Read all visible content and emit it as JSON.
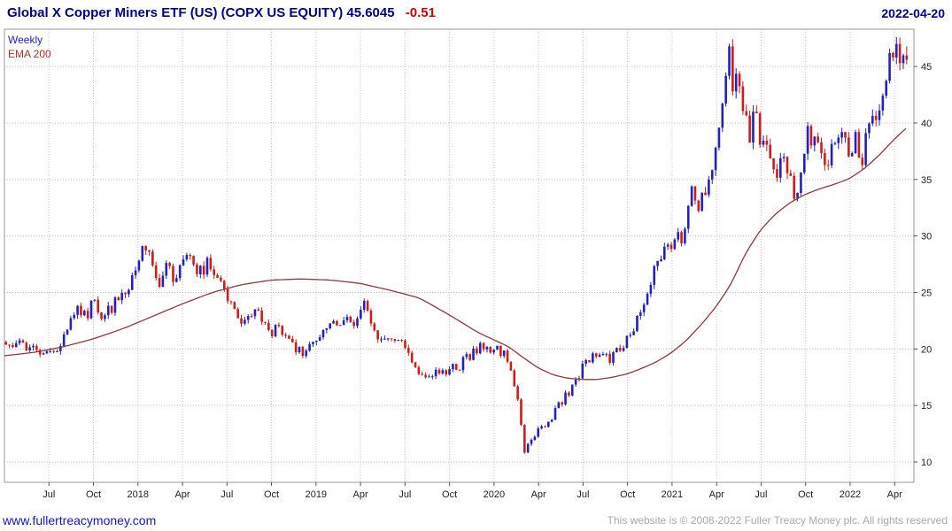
{
  "header": {
    "title": "Global X Copper Miners ETF (US) (COPX US EQUITY) 45.6045",
    "change": "-0.51",
    "date": "2022-04-20"
  },
  "legend": {
    "series1": "Weekly",
    "series2": "EMA 200"
  },
  "footer": {
    "link": "www.fullertreacymoney.com",
    "copyright": "This website is © 2008-2022 Fuller Treacy Money plc. All rights reserved"
  },
  "colors": {
    "title": "#00008b",
    "change": "#cc0000",
    "date": "#00008b",
    "up": "#2222bb",
    "down": "#cc1c1c",
    "ema": "#8b3a3a",
    "grid": "#c6c6c6",
    "axis": "#999999",
    "tick": "#555555",
    "tick_text": "#222222",
    "legend_weekly": "#2222bb",
    "legend_ema": "#b03030",
    "link": "#1515cc",
    "copyright": "#a9a9a9"
  },
  "chart_data": {
    "type": "candlestick",
    "instrument": "Global X Copper Miners ETF (US) (COPX US EQUITY)",
    "timeframe": "Weekly",
    "overlay": "EMA 200",
    "last_close": 45.6045,
    "change": -0.51,
    "date": "2022-04-20",
    "y_ticks": [
      10,
      15,
      20,
      25,
      30,
      35,
      40,
      45
    ],
    "y_range": [
      8.2,
      48.3
    ],
    "x_range_months": [
      -2,
      59.3
    ],
    "x_epoch": "months since 2017-06",
    "x_ticks": [
      {
        "m": 1,
        "label": "Jul"
      },
      {
        "m": 4,
        "label": "Oct"
      },
      {
        "m": 7,
        "label": "2018"
      },
      {
        "m": 10,
        "label": "Apr"
      },
      {
        "m": 13,
        "label": "Jul"
      },
      {
        "m": 16,
        "label": "Oct"
      },
      {
        "m": 19,
        "label": "2019"
      },
      {
        "m": 22,
        "label": "Apr"
      },
      {
        "m": 25,
        "label": "Jul"
      },
      {
        "m": 28,
        "label": "Oct"
      },
      {
        "m": 31,
        "label": "2020"
      },
      {
        "m": 34,
        "label": "Apr"
      },
      {
        "m": 37,
        "label": "Jul"
      },
      {
        "m": 40,
        "label": "Oct"
      },
      {
        "m": 43,
        "label": "2021"
      },
      {
        "m": 46,
        "label": "Apr"
      },
      {
        "m": 49,
        "label": "Jul"
      },
      {
        "m": 52,
        "label": "Oct"
      },
      {
        "m": 55,
        "label": "2022"
      },
      {
        "m": 58,
        "label": "Apr"
      }
    ],
    "close_anchors": [
      [
        -2.0,
        20.6
      ],
      [
        -1.5,
        19.8
      ],
      [
        -1.0,
        20.6
      ],
      [
        -0.5,
        19.9
      ],
      [
        0.0,
        20.4
      ],
      [
        0.5,
        19.6
      ],
      [
        1.0,
        20.2
      ],
      [
        1.5,
        19.7
      ],
      [
        2.0,
        21.6
      ],
      [
        2.5,
        22.4
      ],
      [
        3.0,
        23.4
      ],
      [
        3.5,
        22.8
      ],
      [
        4.0,
        24.4
      ],
      [
        4.5,
        23.2
      ],
      [
        5.0,
        23.4
      ],
      [
        5.5,
        24.2
      ],
      [
        6.0,
        25.2
      ],
      [
        6.5,
        26.0
      ],
      [
        7.0,
        27.8
      ],
      [
        7.6,
        29.4
      ],
      [
        8.0,
        27.0
      ],
      [
        8.4,
        25.8
      ],
      [
        9.0,
        27.2
      ],
      [
        9.5,
        26.2
      ],
      [
        10.0,
        27.6
      ],
      [
        10.5,
        28.3
      ],
      [
        11.0,
        26.8
      ],
      [
        11.5,
        27.3
      ],
      [
        12.0,
        27.6
      ],
      [
        12.5,
        26.0
      ],
      [
        13.0,
        24.2
      ],
      [
        13.5,
        23.2
      ],
      [
        14.0,
        22.3
      ],
      [
        14.5,
        22.8
      ],
      [
        15.0,
        23.2
      ],
      [
        15.5,
        22.0
      ],
      [
        16.0,
        21.4
      ],
      [
        16.5,
        21.8
      ],
      [
        17.0,
        20.8
      ],
      [
        17.5,
        20.2
      ],
      [
        18.0,
        19.6
      ],
      [
        18.5,
        20.2
      ],
      [
        19.0,
        20.9
      ],
      [
        19.5,
        21.6
      ],
      [
        20.0,
        22.4
      ],
      [
        20.5,
        22.1
      ],
      [
        21.0,
        22.7
      ],
      [
        21.5,
        22.3
      ],
      [
        22.0,
        23.4
      ],
      [
        22.3,
        23.9
      ],
      [
        22.7,
        22.6
      ],
      [
        23.0,
        21.4
      ],
      [
        23.5,
        20.8
      ],
      [
        24.0,
        20.9
      ],
      [
        24.5,
        21.3
      ],
      [
        25.0,
        20.2
      ],
      [
        25.5,
        18.8
      ],
      [
        26.0,
        17.7
      ],
      [
        26.5,
        17.3
      ],
      [
        27.0,
        18.2
      ],
      [
        27.5,
        17.8
      ],
      [
        28.0,
        18.5
      ],
      [
        28.5,
        18.3
      ],
      [
        29.0,
        19.0
      ],
      [
        29.5,
        19.4
      ],
      [
        30.0,
        20.4
      ],
      [
        30.5,
        20.1
      ],
      [
        31.0,
        19.7
      ],
      [
        31.5,
        19.9
      ],
      [
        32.0,
        18.8
      ],
      [
        32.5,
        16.5
      ],
      [
        32.8,
        13.8
      ],
      [
        33.1,
        10.6
      ],
      [
        33.4,
        11.9
      ],
      [
        33.7,
        12.4
      ],
      [
        34.0,
        13.1
      ],
      [
        34.5,
        13.0
      ],
      [
        35.0,
        14.3
      ],
      [
        35.5,
        15.2
      ],
      [
        36.0,
        16.1
      ],
      [
        36.5,
        17.2
      ],
      [
        37.0,
        18.5
      ],
      [
        37.5,
        19.3
      ],
      [
        38.0,
        19.8
      ],
      [
        38.5,
        19.1
      ],
      [
        39.0,
        19.3
      ],
      [
        39.5,
        20.0
      ],
      [
        40.0,
        20.7
      ],
      [
        40.5,
        22.2
      ],
      [
        41.0,
        24.1
      ],
      [
        41.5,
        25.6
      ],
      [
        42.0,
        27.5
      ],
      [
        42.5,
        28.4
      ],
      [
        43.0,
        28.7
      ],
      [
        43.3,
        30.4
      ],
      [
        43.7,
        29.2
      ],
      [
        44.0,
        33.0
      ],
      [
        44.4,
        34.2
      ],
      [
        44.8,
        32.4
      ],
      [
        45.0,
        33.0
      ],
      [
        45.5,
        35.6
      ],
      [
        46.0,
        38.4
      ],
      [
        46.4,
        41.0
      ],
      [
        46.8,
        46.6
      ],
      [
        47.1,
        42.8
      ],
      [
        47.4,
        44.6
      ],
      [
        47.8,
        41.0
      ],
      [
        48.2,
        39.0
      ],
      [
        48.6,
        40.6
      ],
      [
        49.0,
        37.6
      ],
      [
        49.4,
        38.9
      ],
      [
        49.8,
        36.4
      ],
      [
        50.2,
        35.6
      ],
      [
        50.6,
        37.2
      ],
      [
        51.0,
        34.6
      ],
      [
        51.4,
        33.4
      ],
      [
        51.8,
        36.6
      ],
      [
        52.2,
        39.4
      ],
      [
        52.6,
        38.2
      ],
      [
        53.0,
        36.8
      ],
      [
        53.4,
        35.4
      ],
      [
        53.8,
        37.6
      ],
      [
        54.2,
        38.8
      ],
      [
        54.6,
        39.2
      ],
      [
        55.0,
        37.4
      ],
      [
        55.4,
        38.8
      ],
      [
        55.8,
        36.8
      ],
      [
        56.2,
        39.6
      ],
      [
        56.6,
        40.4
      ],
      [
        57.0,
        42.0
      ],
      [
        57.4,
        44.4
      ],
      [
        57.8,
        46.6
      ],
      [
        58.2,
        46.9
      ],
      [
        58.5,
        45.8
      ],
      [
        58.8,
        45.6
      ]
    ],
    "ema_anchors": [
      [
        -2,
        19.4
      ],
      [
        0,
        19.7
      ],
      [
        2,
        20.2
      ],
      [
        4,
        20.9
      ],
      [
        6,
        21.8
      ],
      [
        8,
        22.9
      ],
      [
        10,
        24.0
      ],
      [
        12,
        25.0
      ],
      [
        14,
        25.7
      ],
      [
        16,
        26.1
      ],
      [
        18,
        26.2
      ],
      [
        20,
        26.1
      ],
      [
        22,
        25.8
      ],
      [
        24,
        25.2
      ],
      [
        26,
        24.5
      ],
      [
        28,
        23.0
      ],
      [
        29,
        22.2
      ],
      [
        30,
        21.4
      ],
      [
        31,
        20.8
      ],
      [
        32,
        20.2
      ],
      [
        33,
        19.2
      ],
      [
        34,
        18.3
      ],
      [
        35,
        17.7
      ],
      [
        36,
        17.4
      ],
      [
        37,
        17.3
      ],
      [
        38,
        17.3
      ],
      [
        39,
        17.5
      ],
      [
        40,
        17.8
      ],
      [
        41,
        18.3
      ],
      [
        42,
        18.9
      ],
      [
        43,
        19.7
      ],
      [
        44,
        20.8
      ],
      [
        45,
        22.2
      ],
      [
        46,
        23.8
      ],
      [
        47,
        25.8
      ],
      [
        48,
        28.6
      ],
      [
        49,
        30.6
      ],
      [
        50,
        32.0
      ],
      [
        51,
        33.0
      ],
      [
        52,
        33.7
      ],
      [
        53,
        34.2
      ],
      [
        54,
        34.6
      ],
      [
        55,
        35.1
      ],
      [
        56,
        36.0
      ],
      [
        57,
        37.2
      ],
      [
        58,
        38.6
      ],
      [
        59,
        39.8
      ]
    ]
  }
}
